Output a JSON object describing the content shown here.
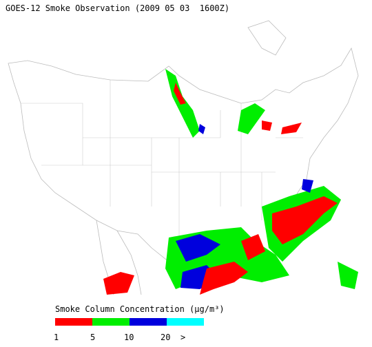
{
  "title": "GOES-12 Smoke Observation (2009 05 03  1600Z)",
  "legend": {
    "title": "Smoke Column Concentration (µg/m³)",
    "colors": [
      "#ff0000",
      "#00ee00",
      "#0000dd",
      "#00ffff"
    ],
    "labels": [
      "1",
      "5",
      "10",
      "20",
      ">"
    ]
  }
}
